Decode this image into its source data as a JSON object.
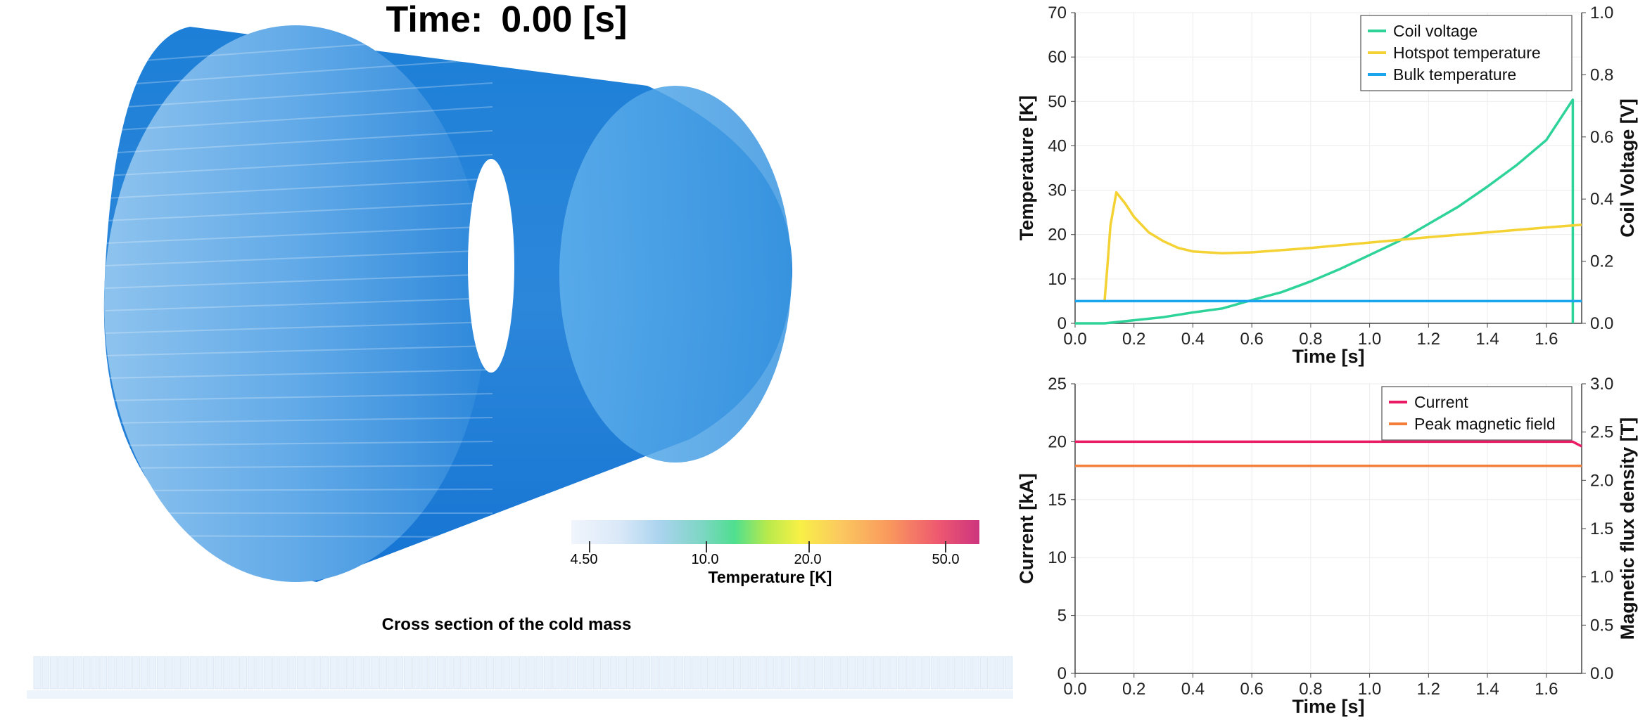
{
  "scene": {
    "time_label": "Time:",
    "time_value": "0.00 [s]",
    "cross_section_caption": "Cross section of the cold mass",
    "colorbar": {
      "label": "Temperature [K]",
      "ticks": [
        "4.50",
        "10.0",
        "20.0",
        "50.0"
      ],
      "colors": [
        "#f1f5fc",
        "#bcd8f2",
        "#7fd2c4",
        "#4fdf8f",
        "#c6ec4a",
        "#f8f046",
        "#fbc85f",
        "#f9985d",
        "#ee5870",
        "#cc347e"
      ]
    },
    "cylinder_color": "#1f82d8"
  },
  "chart_data": [
    {
      "type": "line",
      "xlabel": "Time [s]",
      "ylabel": "Temperature [K]",
      "y2label": "Coil Voltage [V]",
      "xlim": [
        0,
        1.72
      ],
      "ylim": [
        0,
        70
      ],
      "y2lim": [
        0,
        1.0
      ],
      "xticks": [
        "0.0",
        "0.2",
        "0.4",
        "0.6",
        "0.8",
        "1.0",
        "1.2",
        "1.4",
        "1.6"
      ],
      "yticks": [
        "0",
        "10",
        "20",
        "30",
        "40",
        "50",
        "60",
        "70"
      ],
      "y2ticks": [
        "0.0",
        "0.2",
        "0.4",
        "0.6",
        "0.8",
        "1.0"
      ],
      "grid": true,
      "legend_position": "top-right",
      "series": [
        {
          "name": "Coil voltage",
          "axis": "right",
          "color": "#2ed39a",
          "x": [
            0,
            0.1,
            0.2,
            0.3,
            0.4,
            0.5,
            0.6,
            0.7,
            0.8,
            0.9,
            1.0,
            1.1,
            1.2,
            1.3,
            1.4,
            1.5,
            1.6,
            1.69,
            1.69
          ],
          "y": [
            0,
            0,
            0.01,
            0.02,
            0.035,
            0.048,
            0.075,
            0.1,
            0.135,
            0.175,
            0.22,
            0.265,
            0.32,
            0.375,
            0.44,
            0.51,
            0.59,
            0.72,
            0
          ]
        },
        {
          "name": "Hotspot temperature",
          "axis": "left",
          "color": "#f5d233",
          "x": [
            0.1,
            0.11,
            0.12,
            0.14,
            0.17,
            0.2,
            0.25,
            0.3,
            0.35,
            0.4,
            0.5,
            0.6,
            0.8,
            1.0,
            1.2,
            1.4,
            1.6,
            1.72
          ],
          "y": [
            5,
            13,
            22,
            29.5,
            27,
            24,
            20.5,
            18.5,
            17,
            16.2,
            15.8,
            16,
            17,
            18.2,
            19.4,
            20.5,
            21.6,
            22.2
          ]
        },
        {
          "name": "Bulk temperature",
          "axis": "left",
          "color": "#1aa5ec",
          "x": [
            0,
            1.72
          ],
          "y": [
            5,
            5
          ]
        }
      ]
    },
    {
      "type": "line",
      "xlabel": "Time [s]",
      "ylabel": "Current [kA]",
      "y2label": "Magnetic flux density [T]",
      "xlim": [
        0,
        1.72
      ],
      "ylim": [
        0,
        25
      ],
      "y2lim": [
        0,
        3.0
      ],
      "xticks": [
        "0.0",
        "0.2",
        "0.4",
        "0.6",
        "0.8",
        "1.0",
        "1.2",
        "1.4",
        "1.6"
      ],
      "yticks": [
        "0",
        "5",
        "10",
        "15",
        "20",
        "25"
      ],
      "y2ticks": [
        "0.0",
        "0.5",
        "1.0",
        "1.5",
        "2.0",
        "2.5",
        "3.0"
      ],
      "grid": true,
      "legend_position": "top-right",
      "series": [
        {
          "name": "Current",
          "axis": "left",
          "color": "#ea1b63",
          "x": [
            0,
            1.69,
            1.72
          ],
          "y": [
            20,
            20,
            19.6
          ]
        },
        {
          "name": "Peak magnetic field",
          "axis": "right",
          "color": "#f47f3a",
          "x": [
            0,
            1.72
          ],
          "y": [
            2.15,
            2.15
          ]
        }
      ]
    }
  ]
}
